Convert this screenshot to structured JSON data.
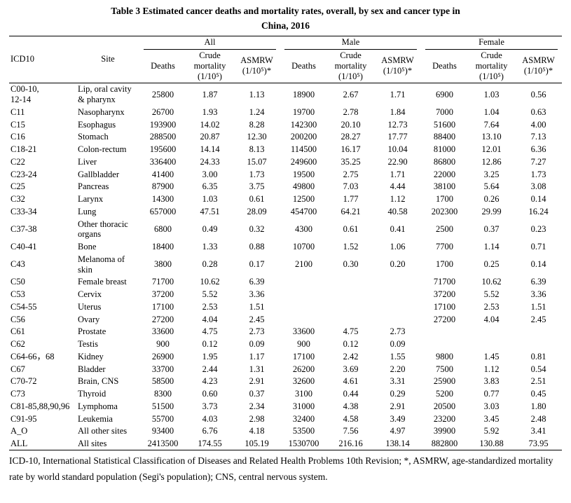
{
  "title": {
    "line1": "Table 3 Estimated cancer deaths and mortality rates, overall, by sex and cancer type in",
    "line2": "China, 2016"
  },
  "table": {
    "header": {
      "icd10": "ICD10",
      "site": "Site",
      "groups": [
        "All",
        "Male",
        "Female"
      ],
      "subcolumns": [
        "Deaths",
        "Crude mortality (1/10⁵)",
        "ASMRW (1/10⁵)*"
      ]
    },
    "rows": [
      {
        "icd10": "C00-10,\n12-14",
        "site": "Lip, oral cavity & pharynx",
        "values": [
          "25800",
          "1.87",
          "1.13",
          "18900",
          "2.67",
          "1.71",
          "6900",
          "1.03",
          "0.56"
        ]
      },
      {
        "icd10": "C11",
        "site": "Nasopharynx",
        "values": [
          "26700",
          "1.93",
          "1.24",
          "19700",
          "2.78",
          "1.84",
          "7000",
          "1.04",
          "0.63"
        ]
      },
      {
        "icd10": "C15",
        "site": "Esophagus",
        "values": [
          "193900",
          "14.02",
          "8.28",
          "142300",
          "20.10",
          "12.73",
          "51600",
          "7.64",
          "4.00"
        ]
      },
      {
        "icd10": "C16",
        "site": "Stomach",
        "values": [
          "288500",
          "20.87",
          "12.30",
          "200200",
          "28.27",
          "17.77",
          "88400",
          "13.10",
          "7.13"
        ]
      },
      {
        "icd10": "C18-21",
        "site": "Colon-rectum",
        "values": [
          "195600",
          "14.14",
          "8.13",
          "114500",
          "16.17",
          "10.04",
          "81000",
          "12.01",
          "6.36"
        ]
      },
      {
        "icd10": "C22",
        "site": "Liver",
        "values": [
          "336400",
          "24.33",
          "15.07",
          "249600",
          "35.25",
          "22.90",
          "86800",
          "12.86",
          "7.27"
        ]
      },
      {
        "icd10": "C23-24",
        "site": "Gallbladder",
        "values": [
          "41400",
          "3.00",
          "1.73",
          "19500",
          "2.75",
          "1.71",
          "22000",
          "3.25",
          "1.73"
        ]
      },
      {
        "icd10": "C25",
        "site": "Pancreas",
        "values": [
          "87900",
          "6.35",
          "3.75",
          "49800",
          "7.03",
          "4.44",
          "38100",
          "5.64",
          "3.08"
        ]
      },
      {
        "icd10": "C32",
        "site": "Larynx",
        "values": [
          "14300",
          "1.03",
          "0.61",
          "12500",
          "1.77",
          "1.12",
          "1700",
          "0.26",
          "0.14"
        ]
      },
      {
        "icd10": "C33-34",
        "site": "Lung",
        "values": [
          "657000",
          "47.51",
          "28.09",
          "454700",
          "64.21",
          "40.58",
          "202300",
          "29.99",
          "16.24"
        ]
      },
      {
        "icd10": "C37-38",
        "site": "Other thoracic organs",
        "values": [
          "6800",
          "0.49",
          "0.32",
          "4300",
          "0.61",
          "0.41",
          "2500",
          "0.37",
          "0.23"
        ]
      },
      {
        "icd10": "C40-41",
        "site": "Bone",
        "values": [
          "18400",
          "1.33",
          "0.88",
          "10700",
          "1.52",
          "1.06",
          "7700",
          "1.14",
          "0.71"
        ]
      },
      {
        "icd10": "C43",
        "site": "Melanoma of skin",
        "values": [
          "3800",
          "0.28",
          "0.17",
          "2100",
          "0.30",
          "0.20",
          "1700",
          "0.25",
          "0.14"
        ]
      },
      {
        "icd10": "C50",
        "site": "Female breast",
        "values": [
          "71700",
          "10.62",
          "6.39",
          "",
          "",
          "",
          "71700",
          "10.62",
          "6.39"
        ]
      },
      {
        "icd10": "C53",
        "site": "Cervix",
        "values": [
          "37200",
          "5.52",
          "3.36",
          "",
          "",
          "",
          "37200",
          "5.52",
          "3.36"
        ]
      },
      {
        "icd10": "C54-55",
        "site": "Uterus",
        "values": [
          "17100",
          "2.53",
          "1.51",
          "",
          "",
          "",
          "17100",
          "2.53",
          "1.51"
        ]
      },
      {
        "icd10": "C56",
        "site": "Ovary",
        "values": [
          "27200",
          "4.04",
          "2.45",
          "",
          "",
          "",
          "27200",
          "4.04",
          "2.45"
        ]
      },
      {
        "icd10": "C61",
        "site": "Prostate",
        "values": [
          "33600",
          "4.75",
          "2.73",
          "33600",
          "4.75",
          "2.73",
          "",
          "",
          ""
        ]
      },
      {
        "icd10": "C62",
        "site": "Testis",
        "values": [
          "900",
          "0.12",
          "0.09",
          "900",
          "0.12",
          "0.09",
          "",
          "",
          ""
        ]
      },
      {
        "icd10": "C64-66，68",
        "site": "Kidney",
        "values": [
          "26900",
          "1.95",
          "1.17",
          "17100",
          "2.42",
          "1.55",
          "9800",
          "1.45",
          "0.81"
        ]
      },
      {
        "icd10": "C67",
        "site": "Bladder",
        "values": [
          "33700",
          "2.44",
          "1.31",
          "26200",
          "3.69",
          "2.20",
          "7500",
          "1.12",
          "0.54"
        ]
      },
      {
        "icd10": "C70-72",
        "site": "Brain, CNS",
        "values": [
          "58500",
          "4.23",
          "2.91",
          "32600",
          "4.61",
          "3.31",
          "25900",
          "3.83",
          "2.51"
        ]
      },
      {
        "icd10": "C73",
        "site": "Thyroid",
        "values": [
          "8300",
          "0.60",
          "0.37",
          "3100",
          "0.44",
          "0.29",
          "5200",
          "0.77",
          "0.45"
        ]
      },
      {
        "icd10": "C81-85,88,90,96",
        "site": "Lymphoma",
        "values": [
          "51500",
          "3.73",
          "2.34",
          "31000",
          "4.38",
          "2.91",
          "20500",
          "3.03",
          "1.80"
        ]
      },
      {
        "icd10": "C91-95",
        "site": "Leukemia",
        "values": [
          "55700",
          "4.03",
          "2.98",
          "32400",
          "4.58",
          "3.49",
          "23200",
          "3.45",
          "2.48"
        ]
      },
      {
        "icd10": "A_O",
        "site": "All other sites",
        "values": [
          "93400",
          "6.76",
          "4.18",
          "53500",
          "7.56",
          "4.97",
          "39900",
          "5.92",
          "3.41"
        ]
      },
      {
        "icd10": "ALL",
        "site": "All sites",
        "values": [
          "2413500",
          "174.55",
          "105.19",
          "1530700",
          "216.16",
          "138.14",
          "882800",
          "130.88",
          "73.95"
        ]
      }
    ]
  },
  "footnote": "ICD-10, International Statistical Classification of Diseases and Related Health Problems 10th Revision; *, ASMRW, age-standardized mortality rate by world standard population (Segi's population); CNS, central nervous system."
}
